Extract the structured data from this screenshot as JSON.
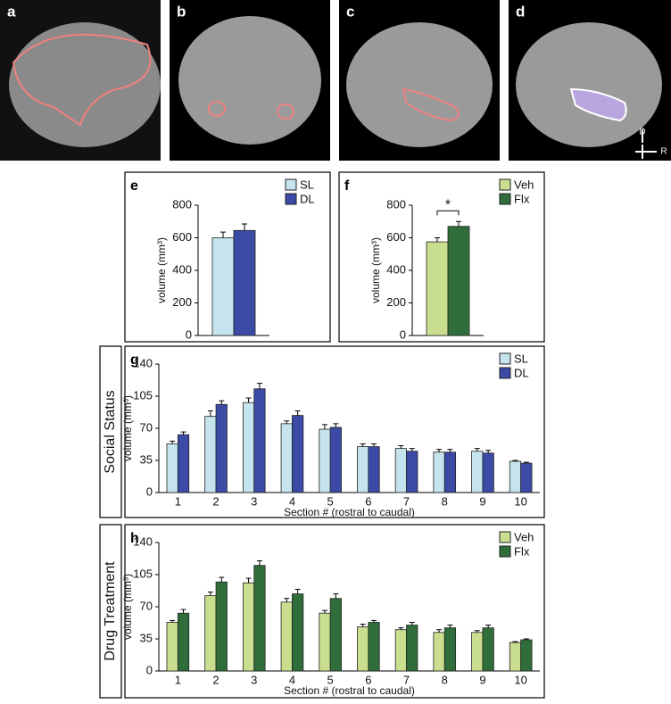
{
  "images": [
    {
      "label": "a"
    },
    {
      "label": "b"
    },
    {
      "label": "c"
    },
    {
      "label": "d"
    }
  ],
  "orientation": {
    "dorsal": "D",
    "right": "R"
  },
  "chart_data": [
    {
      "type": "bar",
      "panel": "e",
      "categories": [
        null
      ],
      "ylabel": "volume (mm³)",
      "ylim": [
        0,
        800
      ],
      "yticks": [
        0,
        200,
        400,
        600,
        800
      ],
      "series": [
        {
          "name": "SL",
          "color": "#c5e4ee",
          "values": [
            600
          ],
          "errors": [
            35
          ]
        },
        {
          "name": "DL",
          "color": "#3b4aa5",
          "values": [
            645
          ],
          "errors": [
            40
          ]
        }
      ]
    },
    {
      "type": "bar",
      "panel": "f",
      "categories": [
        null
      ],
      "ylabel": "volume (mm³)",
      "annotation": "*",
      "ylim": [
        0,
        800
      ],
      "yticks": [
        0,
        200,
        400,
        600,
        800
      ],
      "series": [
        {
          "name": "Veh",
          "color": "#c9df8f",
          "values": [
            575
          ],
          "errors": [
            25
          ]
        },
        {
          "name": "Flx",
          "color": "#2f6e3a",
          "values": [
            670
          ],
          "errors": [
            30
          ]
        }
      ]
    },
    {
      "type": "bar",
      "panel": "g",
      "row_label": "Social Status",
      "categories": [
        "1",
        "2",
        "3",
        "4",
        "5",
        "6",
        "7",
        "8",
        "9",
        "10"
      ],
      "xlabel": "Section # (rostral to caudal)",
      "ylabel": "volume (mm³)",
      "ylim": [
        0,
        140
      ],
      "yticks": [
        0,
        35,
        70,
        105,
        140
      ],
      "series": [
        {
          "name": "SL",
          "color": "#c5e4ee",
          "values": [
            53,
            83,
            98,
            75,
            69,
            50,
            48,
            44,
            45,
            34
          ],
          "errors": [
            3,
            6,
            5,
            3,
            5,
            3,
            3,
            3,
            3,
            1
          ]
        },
        {
          "name": "DL",
          "color": "#3b4aa5",
          "values": [
            63,
            96,
            113,
            84,
            71,
            50,
            45,
            44,
            43,
            32
          ],
          "errors": [
            3,
            4,
            6,
            5,
            4,
            3,
            3,
            3,
            3,
            1
          ]
        }
      ]
    },
    {
      "type": "bar",
      "panel": "h",
      "row_label": "Drug Treatment",
      "categories": [
        "1",
        "2",
        "3",
        "4",
        "5",
        "6",
        "7",
        "8",
        "9",
        "10"
      ],
      "xlabel": "Section # (rostral to caudal)",
      "ylabel": "volume (mm³)",
      "ylim": [
        0,
        140
      ],
      "yticks": [
        0,
        35,
        70,
        105,
        140
      ],
      "series": [
        {
          "name": "Veh",
          "color": "#c9df8f",
          "values": [
            53,
            82,
            96,
            75,
            63,
            48,
            45,
            42,
            42,
            31
          ],
          "errors": [
            2,
            4,
            5,
            4,
            3,
            3,
            2,
            3,
            2,
            1
          ]
        },
        {
          "name": "Flx",
          "color": "#2f6e3a",
          "values": [
            63,
            97,
            115,
            84,
            79,
            53,
            50,
            47,
            47,
            34
          ],
          "errors": [
            4,
            5,
            5,
            5,
            5,
            2,
            3,
            3,
            3,
            1
          ]
        }
      ]
    }
  ]
}
